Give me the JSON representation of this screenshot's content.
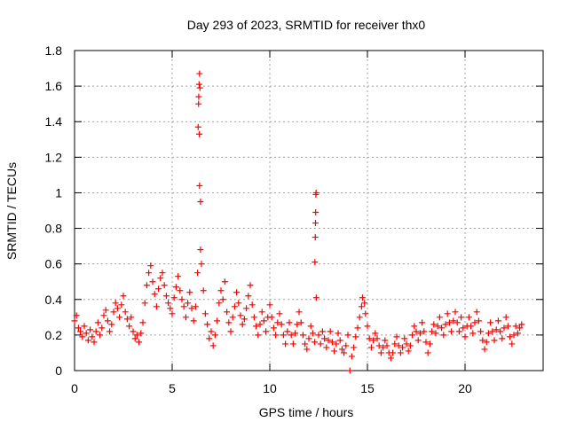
{
  "chart_data": {
    "type": "scatter",
    "title": "Day 293 of 2023, SRMTID for receiver thx0",
    "xlabel": "GPS time / hours",
    "ylabel": "SRMTID / TECUs",
    "xlim": [
      0,
      24
    ],
    "ylim": [
      0,
      1.8
    ],
    "x_ticks": [
      0,
      5,
      10,
      15,
      20
    ],
    "x_tick_labels": [
      "0",
      "5",
      "10",
      "15",
      "20"
    ],
    "y_ticks": [
      0,
      0.2,
      0.4,
      0.6,
      0.8,
      1,
      1.2,
      1.4,
      1.6,
      1.8
    ],
    "y_tick_labels": [
      "0",
      "0.2",
      "0.4",
      "0.6",
      "0.8",
      "1",
      "1.2",
      "1.4",
      "1.6",
      "1.8"
    ],
    "grid": true,
    "marker": "+",
    "color": "#ff0000",
    "series": [
      {
        "name": "SRMTID",
        "points": [
          [
            0.0,
            0.28
          ],
          [
            0.1,
            0.31
          ],
          [
            0.2,
            0.24
          ],
          [
            0.3,
            0.22
          ],
          [
            0.4,
            0.19
          ],
          [
            0.5,
            0.25
          ],
          [
            0.6,
            0.21
          ],
          [
            0.7,
            0.17
          ],
          [
            0.8,
            0.23
          ],
          [
            0.9,
            0.19
          ],
          [
            1.0,
            0.16
          ],
          [
            1.1,
            0.22
          ],
          [
            1.2,
            0.27
          ],
          [
            1.3,
            0.2
          ],
          [
            1.4,
            0.24
          ],
          [
            1.5,
            0.31
          ],
          [
            1.6,
            0.34
          ],
          [
            1.7,
            0.28
          ],
          [
            1.8,
            0.22
          ],
          [
            1.9,
            0.26
          ],
          [
            2.0,
            0.33
          ],
          [
            2.1,
            0.38
          ],
          [
            2.2,
            0.35
          ],
          [
            2.3,
            0.3
          ],
          [
            2.4,
            0.37
          ],
          [
            2.5,
            0.42
          ],
          [
            2.6,
            0.33
          ],
          [
            2.7,
            0.29
          ],
          [
            2.8,
            0.25
          ],
          [
            2.9,
            0.3
          ],
          [
            3.0,
            0.22
          ],
          [
            3.1,
            0.18
          ],
          [
            3.2,
            0.2
          ],
          [
            3.3,
            0.16
          ],
          [
            3.4,
            0.21
          ],
          [
            3.5,
            0.27
          ],
          [
            3.6,
            0.38
          ],
          [
            3.7,
            0.48
          ],
          [
            3.8,
            0.55
          ],
          [
            3.9,
            0.59
          ],
          [
            4.0,
            0.5
          ],
          [
            4.1,
            0.43
          ],
          [
            4.2,
            0.36
          ],
          [
            4.3,
            0.46
          ],
          [
            4.4,
            0.52
          ],
          [
            4.5,
            0.55
          ],
          [
            4.6,
            0.48
          ],
          [
            4.7,
            0.42
          ],
          [
            4.8,
            0.38
          ],
          [
            4.9,
            0.35
          ],
          [
            5.0,
            0.32
          ],
          [
            5.1,
            0.41
          ],
          [
            5.2,
            0.47
          ],
          [
            5.3,
            0.53
          ],
          [
            5.4,
            0.45
          ],
          [
            5.5,
            0.4
          ],
          [
            5.6,
            0.36
          ],
          [
            5.7,
            0.3
          ],
          [
            5.8,
            0.38
          ],
          [
            5.9,
            0.44
          ],
          [
            6.0,
            0.35
          ],
          [
            6.1,
            0.28
          ],
          [
            6.2,
            0.36
          ],
          [
            6.3,
            0.55
          ],
          [
            6.33,
            1.37
          ],
          [
            6.35,
            1.5
          ],
          [
            6.36,
            1.54
          ],
          [
            6.38,
            1.61
          ],
          [
            6.39,
            1.33
          ],
          [
            6.4,
            1.67
          ],
          [
            6.4,
            1.04
          ],
          [
            6.42,
            1.59
          ],
          [
            6.45,
            0.95
          ],
          [
            6.45,
            0.68
          ],
          [
            6.5,
            0.6
          ],
          [
            6.6,
            0.45
          ],
          [
            6.7,
            0.32
          ],
          [
            6.8,
            0.26
          ],
          [
            6.9,
            0.18
          ],
          [
            7.0,
            0.22
          ],
          [
            7.1,
            0.14
          ],
          [
            7.2,
            0.2
          ],
          [
            7.3,
            0.28
          ],
          [
            7.4,
            0.38
          ],
          [
            7.5,
            0.45
          ],
          [
            7.6,
            0.4
          ],
          [
            7.7,
            0.5
          ],
          [
            7.8,
            0.33
          ],
          [
            7.9,
            0.27
          ],
          [
            8.0,
            0.22
          ],
          [
            8.1,
            0.3
          ],
          [
            8.2,
            0.36
          ],
          [
            8.3,
            0.44
          ],
          [
            8.4,
            0.38
          ],
          [
            8.5,
            0.31
          ],
          [
            8.6,
            0.26
          ],
          [
            8.7,
            0.29
          ],
          [
            8.8,
            0.35
          ],
          [
            8.9,
            0.42
          ],
          [
            9.0,
            0.48
          ],
          [
            9.1,
            0.37
          ],
          [
            9.2,
            0.3
          ],
          [
            9.3,
            0.25
          ],
          [
            9.4,
            0.2
          ],
          [
            9.5,
            0.26
          ],
          [
            9.6,
            0.33
          ],
          [
            9.7,
            0.28
          ],
          [
            9.8,
            0.22
          ],
          [
            9.9,
            0.3
          ],
          [
            10.0,
            0.37
          ],
          [
            10.1,
            0.3
          ],
          [
            10.2,
            0.24
          ],
          [
            10.3,
            0.2
          ],
          [
            10.4,
            0.27
          ],
          [
            10.5,
            0.32
          ],
          [
            10.6,
            0.26
          ],
          [
            10.7,
            0.2
          ],
          [
            10.8,
            0.15
          ],
          [
            10.9,
            0.22
          ],
          [
            11.0,
            0.27
          ],
          [
            11.1,
            0.2
          ],
          [
            11.2,
            0.15
          ],
          [
            11.3,
            0.21
          ],
          [
            11.4,
            0.26
          ],
          [
            11.5,
            0.33
          ],
          [
            11.6,
            0.27
          ],
          [
            11.7,
            0.2
          ],
          [
            11.8,
            0.15
          ],
          [
            11.9,
            0.12
          ],
          [
            12.0,
            0.18
          ],
          [
            12.1,
            0.25
          ],
          [
            12.2,
            0.21
          ],
          [
            12.3,
            0.16
          ],
          [
            12.31,
            0.61
          ],
          [
            12.33,
            0.75
          ],
          [
            12.34,
            0.83
          ],
          [
            12.35,
            0.89
          ],
          [
            12.36,
            0.99
          ],
          [
            12.37,
            1.0
          ],
          [
            12.38,
            0.41
          ],
          [
            12.5,
            0.2
          ],
          [
            12.6,
            0.15
          ],
          [
            12.7,
            0.22
          ],
          [
            12.8,
            0.18
          ],
          [
            12.9,
            0.13
          ],
          [
            13.0,
            0.17
          ],
          [
            13.1,
            0.22
          ],
          [
            13.2,
            0.16
          ],
          [
            13.3,
            0.11
          ],
          [
            13.4,
            0.15
          ],
          [
            13.5,
            0.21
          ],
          [
            13.6,
            0.17
          ],
          [
            13.7,
            0.12
          ],
          [
            13.8,
            0.1
          ],
          [
            13.9,
            0.14
          ],
          [
            14.0,
            0.2
          ],
          [
            14.1,
            0.0
          ],
          [
            14.2,
            0.08
          ],
          [
            14.3,
            0.13
          ],
          [
            14.4,
            0.19
          ],
          [
            14.5,
            0.24
          ],
          [
            14.6,
            0.3
          ],
          [
            14.7,
            0.36
          ],
          [
            14.75,
            0.41
          ],
          [
            14.85,
            0.38
          ],
          [
            14.9,
            0.32
          ],
          [
            15.0,
            0.25
          ],
          [
            15.1,
            0.18
          ],
          [
            15.2,
            0.13
          ],
          [
            15.3,
            0.17
          ],
          [
            15.4,
            0.21
          ],
          [
            15.5,
            0.18
          ],
          [
            15.6,
            0.14
          ],
          [
            15.7,
            0.1
          ],
          [
            15.8,
            0.13
          ],
          [
            15.9,
            0.17
          ],
          [
            16.0,
            0.14
          ],
          [
            16.1,
            0.1
          ],
          [
            16.2,
            0.07
          ],
          [
            16.3,
            0.1
          ],
          [
            16.4,
            0.15
          ],
          [
            16.5,
            0.19
          ],
          [
            16.6,
            0.14
          ],
          [
            16.7,
            0.1
          ],
          [
            16.8,
            0.13
          ],
          [
            16.9,
            0.18
          ],
          [
            17.0,
            0.15
          ],
          [
            17.1,
            0.11
          ],
          [
            17.2,
            0.14
          ],
          [
            17.3,
            0.2
          ],
          [
            17.4,
            0.25
          ],
          [
            17.5,
            0.22
          ],
          [
            17.6,
            0.17
          ],
          [
            17.7,
            0.21
          ],
          [
            17.8,
            0.27
          ],
          [
            17.9,
            0.22
          ],
          [
            18.0,
            0.16
          ],
          [
            18.1,
            0.1
          ],
          [
            18.2,
            0.15
          ],
          [
            18.3,
            0.22
          ],
          [
            18.4,
            0.26
          ],
          [
            18.5,
            0.21
          ],
          [
            18.6,
            0.25
          ],
          [
            18.7,
            0.3
          ],
          [
            18.8,
            0.24
          ],
          [
            18.9,
            0.2
          ],
          [
            19.0,
            0.26
          ],
          [
            19.1,
            0.32
          ],
          [
            19.2,
            0.27
          ],
          [
            19.3,
            0.22
          ],
          [
            19.4,
            0.28
          ],
          [
            19.5,
            0.33
          ],
          [
            19.6,
            0.27
          ],
          [
            19.7,
            0.22
          ],
          [
            19.8,
            0.3
          ],
          [
            19.9,
            0.24
          ],
          [
            20.0,
            0.19
          ],
          [
            20.1,
            0.25
          ],
          [
            20.2,
            0.3
          ],
          [
            20.3,
            0.25
          ],
          [
            20.4,
            0.21
          ],
          [
            20.5,
            0.27
          ],
          [
            20.6,
            0.33
          ],
          [
            20.7,
            0.28
          ],
          [
            20.8,
            0.22
          ],
          [
            20.9,
            0.17
          ],
          [
            21.0,
            0.12
          ],
          [
            21.1,
            0.16
          ],
          [
            21.2,
            0.21
          ],
          [
            21.3,
            0.27
          ],
          [
            21.4,
            0.22
          ],
          [
            21.5,
            0.17
          ],
          [
            21.6,
            0.23
          ],
          [
            21.7,
            0.28
          ],
          [
            21.8,
            0.22
          ],
          [
            21.9,
            0.18
          ],
          [
            22.0,
            0.24
          ],
          [
            22.1,
            0.3
          ],
          [
            22.2,
            0.25
          ],
          [
            22.3,
            0.19
          ],
          [
            22.4,
            0.15
          ],
          [
            22.5,
            0.2
          ],
          [
            22.6,
            0.25
          ],
          [
            22.7,
            0.21
          ],
          [
            22.8,
            0.24
          ],
          [
            22.9,
            0.26
          ]
        ]
      }
    ]
  }
}
